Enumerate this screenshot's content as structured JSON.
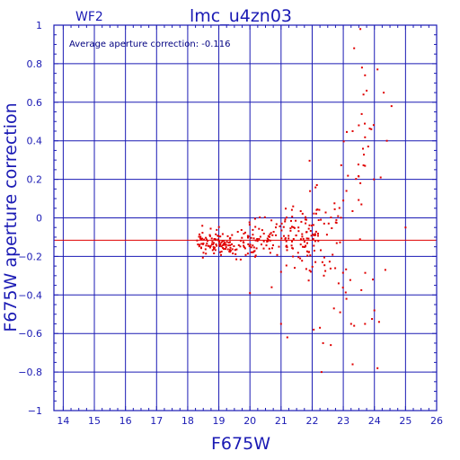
{
  "chart_data": {
    "type": "scatter",
    "title": "lmc_u4zn03",
    "panel_label": "WF2",
    "annotation": "Average aperture correction: -0.116",
    "xlabel": "F675W",
    "ylabel": "F675W aperture correction",
    "xlim": [
      13.7,
      26
    ],
    "ylim": [
      -1,
      1
    ],
    "x_ticks": [
      14,
      15,
      16,
      17,
      18,
      19,
      20,
      21,
      22,
      23,
      24,
      25,
      26
    ],
    "y_ticks": [
      -1,
      -0.8,
      -0.6,
      -0.4,
      -0.2,
      0,
      0.2,
      0.4,
      0.6,
      0.8,
      1
    ],
    "y_tick_labels": [
      "−1",
      "−0.8",
      "−0.6",
      "−0.4",
      "−0.2",
      "0",
      "0.2",
      "0.4",
      "0.6",
      "0.8",
      "1"
    ],
    "grid": true,
    "reference_line": {
      "y": -0.116,
      "color": "#e00000"
    },
    "colors": {
      "axis": "#1a1ab4",
      "grid": "#1a1ab4",
      "points": "#e00000"
    },
    "seed": 20240611,
    "clusters": [
      {
        "n": 110,
        "x": [
          18.3,
          19.7
        ],
        "y_center": -0.135,
        "y_spread": 0.045
      },
      {
        "n": 75,
        "x": [
          19.7,
          21.0
        ],
        "y_center": -0.115,
        "y_spread": 0.07
      },
      {
        "n": 85,
        "x": [
          21.0,
          22.2
        ],
        "y_center": -0.105,
        "y_spread": 0.11
      },
      {
        "n": 45,
        "x": [
          21.8,
          23.0
        ],
        "y_center": -0.07,
        "y_spread": 0.22
      },
      {
        "n": 30,
        "x": [
          22.9,
          24.0
        ],
        "y_center": 0.05,
        "y_spread": 0.45
      }
    ],
    "points": [
      [
        23.55,
        0.98
      ],
      [
        23.35,
        0.88
      ],
      [
        23.6,
        0.78
      ],
      [
        24.1,
        0.77
      ],
      [
        23.7,
        0.74
      ],
      [
        23.75,
        0.66
      ],
      [
        24.3,
        0.65
      ],
      [
        23.65,
        0.64
      ],
      [
        24.55,
        0.58
      ],
      [
        23.9,
        0.46
      ],
      [
        23.5,
        0.48
      ],
      [
        23.3,
        0.45
      ],
      [
        24.4,
        0.4
      ],
      [
        23.8,
        0.37
      ],
      [
        23.7,
        0.27
      ],
      [
        23.55,
        0.18
      ],
      [
        24.2,
        0.21
      ],
      [
        23.1,
        0.14
      ],
      [
        22.15,
        0.17
      ],
      [
        23.0,
        0.09
      ],
      [
        25.0,
        -0.05
      ],
      [
        24.35,
        -0.27
      ],
      [
        22.85,
        -0.34
      ],
      [
        23.95,
        -0.32
      ],
      [
        23.1,
        -0.42
      ],
      [
        22.7,
        -0.47
      ],
      [
        22.9,
        -0.49
      ],
      [
        24.0,
        -0.48
      ],
      [
        23.25,
        -0.55
      ],
      [
        23.35,
        -0.56
      ],
      [
        23.7,
        -0.55
      ],
      [
        24.15,
        -0.54
      ],
      [
        21.0,
        -0.55
      ],
      [
        21.2,
        -0.62
      ],
      [
        22.05,
        -0.58
      ],
      [
        22.25,
        -0.57
      ],
      [
        22.35,
        -0.65
      ],
      [
        22.6,
        -0.66
      ],
      [
        23.3,
        -0.76
      ],
      [
        24.1,
        -0.78
      ],
      [
        22.3,
        -0.8
      ],
      [
        20.0,
        -0.39
      ],
      [
        20.7,
        -0.36
      ],
      [
        21.0,
        -0.28
      ]
    ]
  }
}
